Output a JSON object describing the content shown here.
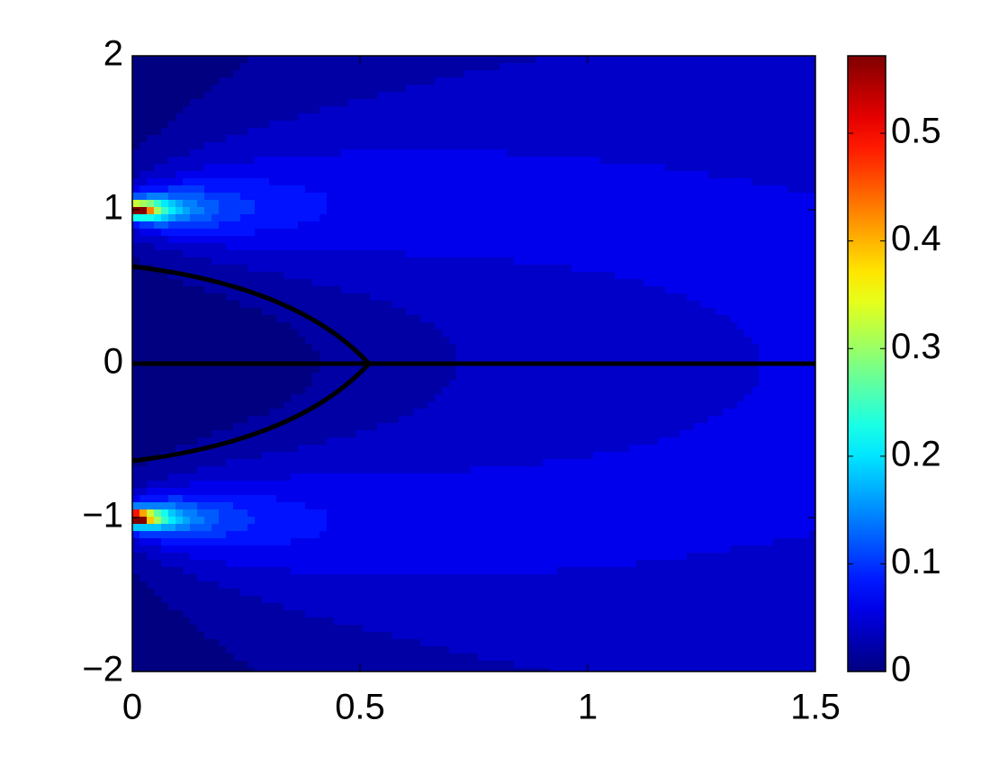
{
  "chart_data": {
    "type": "contourf",
    "xlim": [
      0,
      1.5
    ],
    "xticks": [
      0,
      0.5,
      1,
      1.5
    ],
    "ylim": [
      -2,
      2
    ],
    "yticks": [
      {
        "value": -2,
        "label": "−2"
      },
      {
        "value": -1,
        "label": "−1"
      },
      0,
      1,
      2
    ],
    "clim": [
      0,
      0.572
    ],
    "cticks": [
      0,
      0.1,
      0.2,
      0.3,
      0.4,
      0.5
    ],
    "colormap": "jet"
  }
}
